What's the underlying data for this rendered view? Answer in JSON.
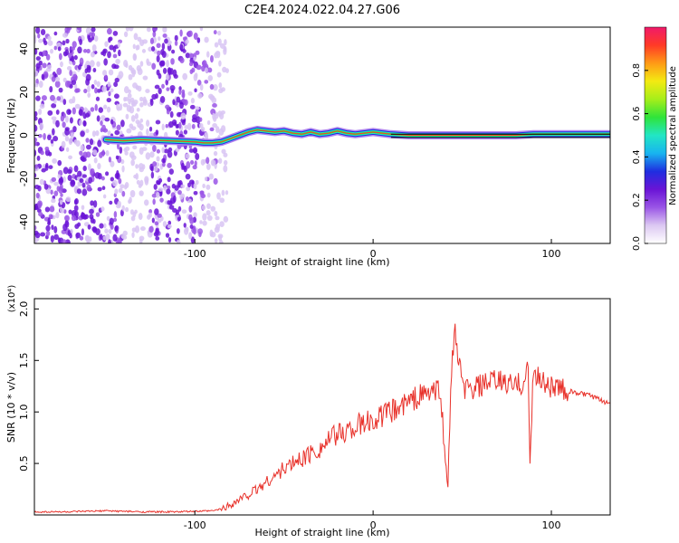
{
  "title": "C2E4.2024.022.04.27.G06",
  "chart_data": [
    {
      "type": "heatmap",
      "xlabel": "Height of straight line (km)",
      "ylabel": "Frequency (Hz)",
      "xlim": [
        -190,
        133
      ],
      "ylim": [
        -50,
        50
      ],
      "xticks": [
        -100,
        0,
        100
      ],
      "yticks": [
        -40,
        -20,
        0,
        20,
        40
      ],
      "grid": false,
      "colorbar": {
        "label": "Normalized spectral amplitude",
        "range": [
          0,
          1
        ],
        "ticks": [
          "0.0",
          "0.2",
          "0.4",
          "0.6",
          "0.8"
        ],
        "colormap": [
          "#ffffff",
          "#dcc8f2",
          "#9a55e6",
          "#6a14d6",
          "#1f2ee0",
          "#18b4f0",
          "#22e6c4",
          "#2fe43a",
          "#a6ee1a",
          "#f3ea12",
          "#ff9a16",
          "#ff3a26",
          "#f01a6a"
        ]
      },
      "signal_trace": {
        "comment_free": true,
        "x": [
          -150,
          -140,
          -130,
          -100,
          -95,
          -90,
          -85,
          -80,
          -75,
          -70,
          -65,
          -60,
          -55,
          -50,
          -45,
          -40,
          -35,
          -30,
          -25,
          -20,
          -15,
          -10,
          -5,
          0,
          5,
          10,
          20,
          40,
          60,
          80,
          90,
          100,
          133
        ],
        "y": [
          -2,
          -2.5,
          -2,
          -3,
          -3.5,
          -3.5,
          -3,
          -1.5,
          0,
          1.5,
          2.5,
          2,
          1.5,
          2,
          1,
          0.5,
          1.5,
          0.5,
          1,
          2,
          1,
          0.5,
          1,
          1.5,
          1,
          0.5,
          0,
          0,
          0,
          0,
          0.5,
          0.5,
          0.5
        ]
      },
      "noise_region_x": [
        -190,
        -78
      ]
    },
    {
      "type": "line",
      "xlabel": "Height of straight line (km)",
      "ylabel": "SNR (10 * v/v)",
      "y_multiplier": "(x10⁴)",
      "xlim": [
        -190,
        133
      ],
      "ylim": [
        0,
        2.1
      ],
      "xticks": [
        -100,
        0,
        100
      ],
      "yticks": [
        0.5,
        1.0,
        1.5,
        2.0
      ],
      "color": "#e8312a",
      "grid": false,
      "series": [
        {
          "x": [
            -190,
            -170,
            -150,
            -130,
            -110,
            -90,
            -85,
            -80,
            -75,
            -70,
            -65,
            -60,
            -55,
            -50,
            -45,
            -40,
            -35,
            -30,
            -25,
            -20,
            -15,
            -10,
            -5,
            0,
            5,
            10,
            15,
            20,
            25,
            30,
            35,
            38,
            40,
            42,
            44,
            46,
            50,
            55,
            60,
            65,
            70,
            75,
            80,
            85,
            87,
            88,
            90,
            95,
            100,
            105,
            110,
            115,
            120,
            125,
            130,
            133
          ],
          "values": [
            0.03,
            0.03,
            0.04,
            0.03,
            0.03,
            0.04,
            0.06,
            0.1,
            0.15,
            0.2,
            0.25,
            0.32,
            0.38,
            0.45,
            0.5,
            0.55,
            0.6,
            0.65,
            0.72,
            0.78,
            0.82,
            0.86,
            0.88,
            0.92,
            0.96,
            1.0,
            1.05,
            1.1,
            1.15,
            1.18,
            1.2,
            1.22,
            0.6,
            0.3,
            1.45,
            1.75,
            1.25,
            1.2,
            1.25,
            1.28,
            1.3,
            1.28,
            1.25,
            1.3,
            1.45,
            0.5,
            1.4,
            1.3,
            1.25,
            1.22,
            1.2,
            1.18,
            1.17,
            1.13,
            1.1,
            1.08
          ]
        }
      ]
    }
  ]
}
